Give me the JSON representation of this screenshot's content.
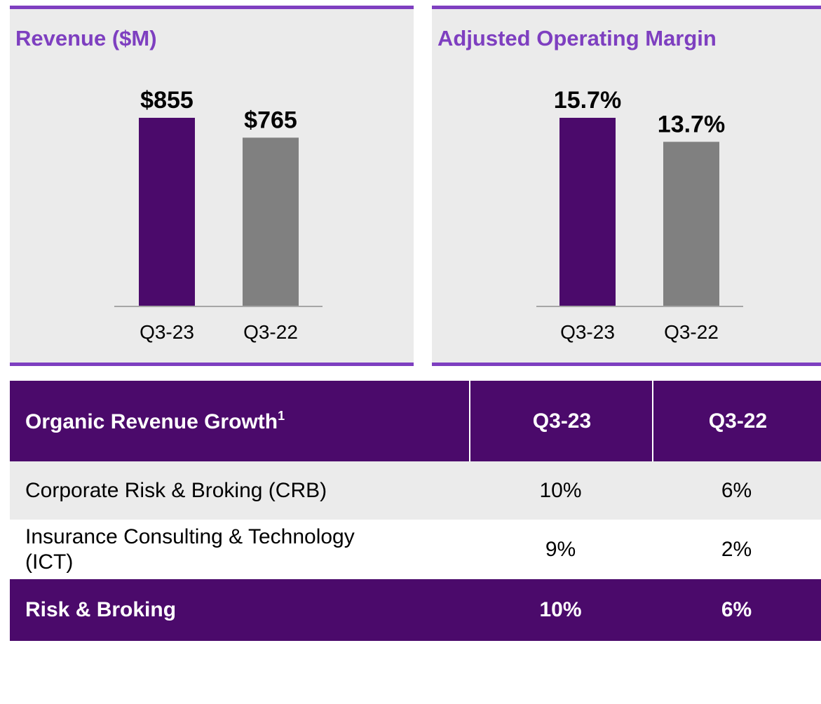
{
  "chart_data": [
    {
      "type": "bar",
      "title": "Revenue ($M)",
      "categories": [
        "Q3-23",
        "Q3-22"
      ],
      "values": [
        855,
        765
      ],
      "value_labels": [
        "$855",
        "$765"
      ],
      "colors": [
        "#4b0a6b",
        "#808080"
      ]
    },
    {
      "type": "bar",
      "title": "Adjusted Operating Margin",
      "categories": [
        "Q3-23",
        "Q3-22"
      ],
      "values": [
        15.7,
        13.7
      ],
      "value_labels": [
        "15.7%",
        "13.7%"
      ],
      "colors": [
        "#4b0a6b",
        "#808080"
      ]
    }
  ],
  "table": {
    "header": [
      "Organic Revenue Growth",
      "Q3-23",
      "Q3-22"
    ],
    "header_note": "1",
    "rows": [
      [
        "Corporate Risk & Broking (CRB)",
        "10%",
        "6%"
      ],
      [
        "Insurance Consulting & Technology (ICT)",
        "9%",
        "2%"
      ],
      [
        "Risk & Broking",
        "10%",
        "6%"
      ]
    ]
  }
}
